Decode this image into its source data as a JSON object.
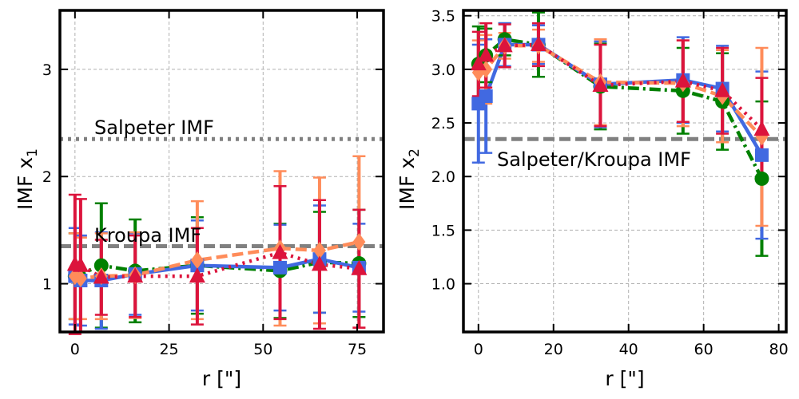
{
  "chart_data": [
    {
      "type": "line",
      "xlabel": "r [\"]",
      "ylabel": "IMF x",
      "ylabel_sub": "1",
      "xlim": [
        -4,
        82
      ],
      "ylim": [
        0.55,
        3.55
      ],
      "xticks": [
        0,
        25,
        50,
        75
      ],
      "yticks": [
        1,
        2,
        3
      ],
      "grid": true,
      "reference_lines": [
        {
          "label": "Salpeter IMF",
          "y": 2.35,
          "style": "dotted",
          "color": "#808080"
        },
        {
          "label": "Kroupa IMF",
          "y": 1.35,
          "style": "dashed",
          "color": "#808080"
        }
      ],
      "series": [
        {
          "color": "#008000",
          "marker": "circle",
          "line_style": "dashdot",
          "x": [
            0,
            7,
            16,
            32.5,
            54.5,
            65,
            75.5
          ],
          "y": [
            1.07,
            1.17,
            1.12,
            1.17,
            1.12,
            1.2,
            1.19
          ],
          "err": [
            0.4,
            0.58,
            0.48,
            0.45,
            0.44,
            0.47,
            0.5
          ]
        },
        {
          "color": "#4169e1",
          "marker": "square",
          "line_style": "solid",
          "x": [
            0,
            1.5,
            7,
            16,
            32.5,
            54.5,
            65,
            75.5
          ],
          "y": [
            1.07,
            1.03,
            1.03,
            1.09,
            1.17,
            1.15,
            1.23,
            1.15
          ],
          "err": [
            0.45,
            0.42,
            0.45,
            0.38,
            0.42,
            0.4,
            0.5,
            0.41
          ]
        },
        {
          "color": "#ff8c5a",
          "marker": "diamond",
          "line_style": "dashed",
          "x": [
            0,
            1.5,
            7,
            16,
            32.5,
            54.5,
            65,
            75.5
          ],
          "y": [
            1.07,
            1.05,
            1.07,
            1.08,
            1.22,
            1.33,
            1.31,
            1.39
          ],
          "err": [
            0.4,
            0.38,
            0.4,
            0.4,
            0.55,
            0.72,
            0.68,
            0.8
          ]
        },
        {
          "color": "#dc143c",
          "marker": "triangle",
          "line_style": "dotted",
          "x": [
            0,
            1.5,
            7,
            16,
            32.5,
            54.5,
            65,
            75.5
          ],
          "y": [
            1.18,
            1.17,
            1.06,
            1.07,
            1.07,
            1.29,
            1.18,
            1.14
          ],
          "err": [
            0.65,
            0.62,
            0.35,
            0.38,
            0.45,
            0.62,
            0.6,
            0.55
          ]
        }
      ]
    },
    {
      "type": "line",
      "xlabel": "r [\"]",
      "ylabel": "IMF x",
      "ylabel_sub": "2",
      "xlim": [
        -4,
        82
      ],
      "ylim": [
        0.55,
        3.55
      ],
      "xticks": [
        0,
        20,
        40,
        60,
        80
      ],
      "yticks": [
        1.0,
        1.5,
        2.0,
        2.5,
        3.0,
        3.5
      ],
      "grid": true,
      "reference_lines": [
        {
          "label": "Salpeter/Kroupa IMF",
          "y": 2.35,
          "style": "dashed",
          "color": "#808080"
        }
      ],
      "series": [
        {
          "color": "#008000",
          "marker": "circle",
          "line_style": "dashdot",
          "x": [
            0,
            2,
            7,
            16,
            32.5,
            54.5,
            65,
            75.5
          ],
          "y": [
            3.05,
            3.13,
            3.28,
            3.23,
            2.84,
            2.8,
            2.7,
            1.98
          ],
          "err": [
            0.35,
            0.25,
            0.15,
            0.3,
            0.4,
            0.4,
            0.45,
            0.72
          ]
        },
        {
          "color": "#4169e1",
          "marker": "square",
          "line_style": "solid",
          "x": [
            0,
            2,
            7,
            16,
            32.5,
            54.5,
            65,
            75.5
          ],
          "y": [
            2.68,
            2.75,
            3.23,
            3.23,
            2.86,
            2.9,
            2.82,
            2.2
          ],
          "err": [
            0.55,
            0.53,
            0.2,
            0.18,
            0.4,
            0.4,
            0.4,
            0.78
          ]
        },
        {
          "color": "#ff8c5a",
          "marker": "diamond",
          "line_style": "dashed",
          "x": [
            0,
            2,
            7,
            16,
            32.5,
            54.5,
            65,
            75.5
          ],
          "y": [
            2.97,
            3.0,
            3.22,
            3.22,
            2.88,
            2.87,
            2.75,
            2.37
          ],
          "err": [
            0.3,
            0.32,
            0.12,
            0.15,
            0.4,
            0.4,
            0.43,
            0.83
          ]
        },
        {
          "color": "#dc143c",
          "marker": "triangle",
          "line_style": "dotted",
          "x": [
            0,
            2,
            7,
            16,
            32.5,
            54.5,
            65,
            75.5
          ],
          "y": [
            3.05,
            3.13,
            3.22,
            3.23,
            2.85,
            2.89,
            2.8,
            2.44
          ],
          "err": [
            0.3,
            0.3,
            0.2,
            0.2,
            0.38,
            0.38,
            0.4,
            0.48
          ]
        }
      ]
    }
  ]
}
